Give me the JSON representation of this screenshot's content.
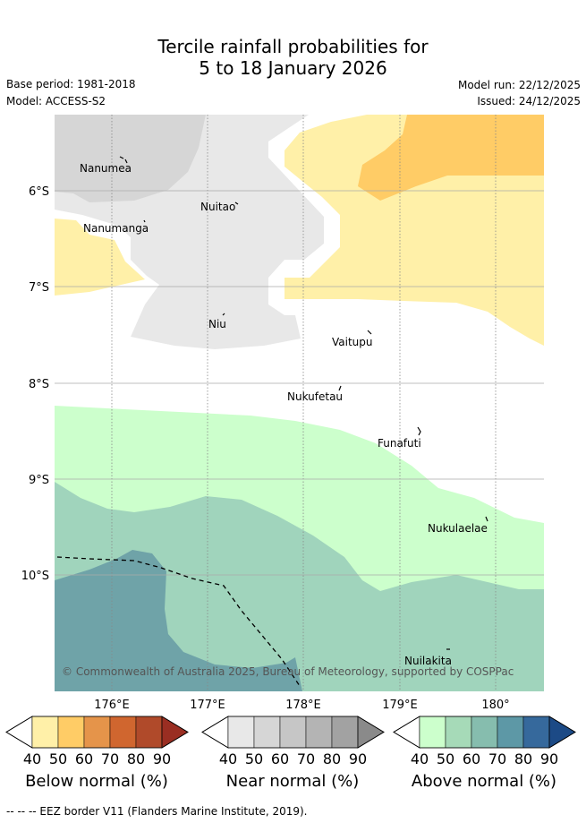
{
  "title_line1": "Tercile rainfall probabilities for",
  "title_line2": "5 to 18 January 2026",
  "base_period": "Base period: 1981-2018",
  "model": "Model: ACCESS-S2",
  "model_run": "Model run: 22/12/2025",
  "issued": "Issued: 24/12/2025",
  "axes": {
    "lat_labels": [
      "6°S",
      "7°S",
      "8°S",
      "9°S",
      "10°S"
    ],
    "lon_labels": [
      "176°E",
      "177°E",
      "178°E",
      "179°E",
      "180°"
    ]
  },
  "places": [
    "Nanumea",
    "Nuitao",
    "Nanumanga",
    "Niu",
    "Vaitupu",
    "Nukufetau",
    "Funafuti",
    "Nukulaelae",
    "Nuilakita"
  ],
  "copyright": "© Commonwealth of Australia 2025, Bureau of Meteorology, supported by COSPPac",
  "colorbars": [
    {
      "title": "Below normal (%)",
      "ticks": [
        "40",
        "50",
        "60",
        "70",
        "80",
        "90"
      ],
      "colors": [
        "#fff0a8",
        "#ffcc66",
        "#e5944a",
        "#d0662f",
        "#b04a2a",
        "#9a2e22"
      ]
    },
    {
      "title": "Near normal (%)",
      "ticks": [
        "40",
        "50",
        "60",
        "70",
        "80",
        "90"
      ],
      "colors": [
        "#e8e8e8",
        "#d6d6d6",
        "#c6c6c6",
        "#b4b4b4",
        "#a2a2a2",
        "#8a8a8a"
      ]
    },
    {
      "title": "Above normal (%)",
      "ticks": [
        "40",
        "50",
        "60",
        "70",
        "80",
        "90"
      ],
      "colors": [
        "#ccffcc",
        "#a6dab8",
        "#86bdae",
        "#5d98a6",
        "#36699c",
        "#1c4a86"
      ]
    }
  ],
  "footer": "-- -- -- EEZ border V11 (Flanders Marine Institute, 2019).",
  "colors": {
    "below_40": "#fff0a8",
    "below_50": "#ffcc66",
    "near_40": "#e8e8e8",
    "near_50": "#d6d6d6",
    "above_40": "#ccffcc",
    "above_50": "#a0d4bc",
    "above_60": "#6fa3a8"
  }
}
